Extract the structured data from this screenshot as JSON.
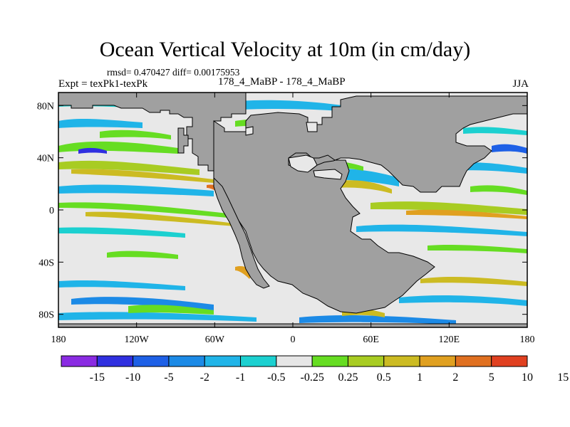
{
  "header": {
    "title": "Ocean Vertical Velocity at 10m (in cm/day)",
    "stats": "rmsd= 0.470427 diff= 0.00175953",
    "experiment": "Expt = texPk1-texPk",
    "case_name": "178_4_MaBP - 178_4_MaBP",
    "season": "JJA"
  },
  "map": {
    "land_color": "#a0a0a0",
    "ocean_background": "#e8e8e8",
    "x_ticks": [
      {
        "lon": -180,
        "label": "180"
      },
      {
        "lon": -120,
        "label": "120W"
      },
      {
        "lon": -60,
        "label": "60W"
      },
      {
        "lon": 0,
        "label": "0"
      },
      {
        "lon": 60,
        "label": "60E"
      },
      {
        "lon": 120,
        "label": "120E"
      },
      {
        "lon": 180,
        "label": "180"
      }
    ],
    "y_ticks": [
      {
        "lat": 80,
        "label": "80N"
      },
      {
        "lat": 40,
        "label": "40N"
      },
      {
        "lat": 0,
        "label": "0"
      },
      {
        "lat": -40,
        "label": "40S"
      },
      {
        "lat": -80,
        "label": "80S"
      }
    ],
    "lon_range": [
      -180,
      180
    ],
    "lat_range": [
      -90,
      90
    ]
  },
  "colorbar": {
    "colors": [
      "#8a2be2",
      "#3030e0",
      "#1e60e6",
      "#1c8ae6",
      "#20b4e8",
      "#1cd0d0",
      "#e6e6e6",
      "#66dd22",
      "#a8cc22",
      "#ccbb22",
      "#e0a020",
      "#e07020",
      "#e04020"
    ],
    "labels": [
      "-15",
      "-10",
      "-5",
      "-2",
      "-1",
      "-0.5",
      "-0.25",
      "0.25",
      "0.5",
      "1",
      "2",
      "5",
      "10",
      "15"
    ]
  }
}
